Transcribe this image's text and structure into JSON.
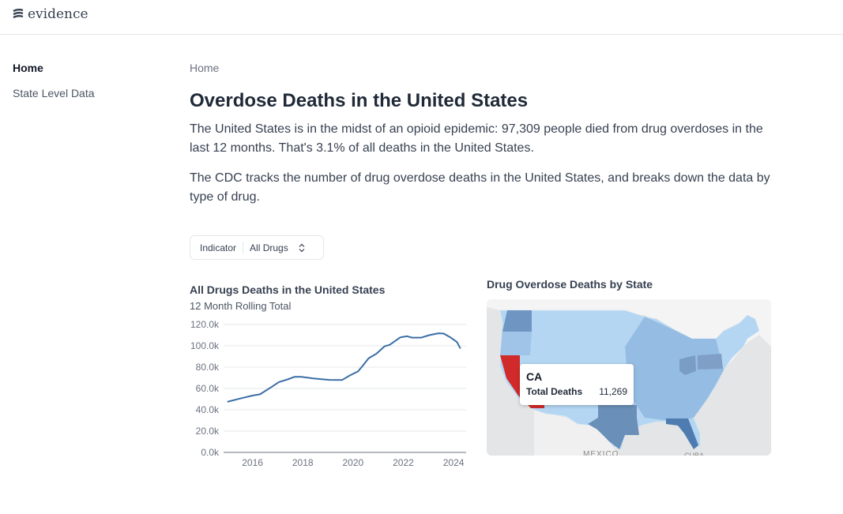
{
  "header": {
    "logo_text": "evidence"
  },
  "sidebar": {
    "items": [
      {
        "label": "Home",
        "active": true
      },
      {
        "label": "State Level Data",
        "active": false
      }
    ]
  },
  "breadcrumb": "Home",
  "title": "Overdose Deaths in the United States",
  "paragraphs": [
    "The United States is in the midst of an opioid epidemic: 97,309 people died from drug overdoses in the last 12 months. That's 3.1% of all deaths in the United States.",
    "The CDC tracks the number of drug overdose deaths in the United States, and breaks down the data by type of drug."
  ],
  "dropdown": {
    "label": "Indicator",
    "value": "All Drugs"
  },
  "chart_data": {
    "type": "line",
    "title": "All Drugs Deaths in the United States",
    "subtitle": "12 Month Rolling Total",
    "xlabel": "",
    "ylabel": "",
    "xlim": [
      2014.85,
      2024.5
    ],
    "ylim": [
      0,
      120000
    ],
    "yticks": [
      "0.0k",
      "20.0k",
      "40.0k",
      "60.0k",
      "80.0k",
      "100.0k",
      "120.0k"
    ],
    "xticks": [
      "2016",
      "2018",
      "2020",
      "2022",
      "2024"
    ],
    "color": "#3a6ea5",
    "x": [
      2015.0,
      2015.5,
      2016.0,
      2016.3,
      2016.73,
      2017.05,
      2017.4,
      2017.68,
      2017.94,
      2018.41,
      2019.05,
      2019.57,
      2019.88,
      2020.2,
      2020.41,
      2020.62,
      2020.93,
      2021.25,
      2021.46,
      2021.88,
      2022.14,
      2022.35,
      2022.72,
      2023.03,
      2023.4,
      2023.61,
      2023.87,
      2024.14,
      2024.27
    ],
    "y": [
      47500,
      50500,
      53300,
      54500,
      61000,
      66000,
      68500,
      71000,
      71000,
      69400,
      68100,
      68000,
      72300,
      76000,
      82000,
      88400,
      92600,
      99500,
      101000,
      107900,
      109000,
      107700,
      107700,
      110000,
      111800,
      111500,
      108000,
      103500,
      97500
    ]
  },
  "map": {
    "title": "Drug Overdose Deaths by State",
    "labels": [
      "MEXICO",
      "CUBA"
    ],
    "tooltip": {
      "state": "CA",
      "metric": "Total Deaths",
      "value": "11,269"
    },
    "highlight_color": "#d12a2a"
  }
}
